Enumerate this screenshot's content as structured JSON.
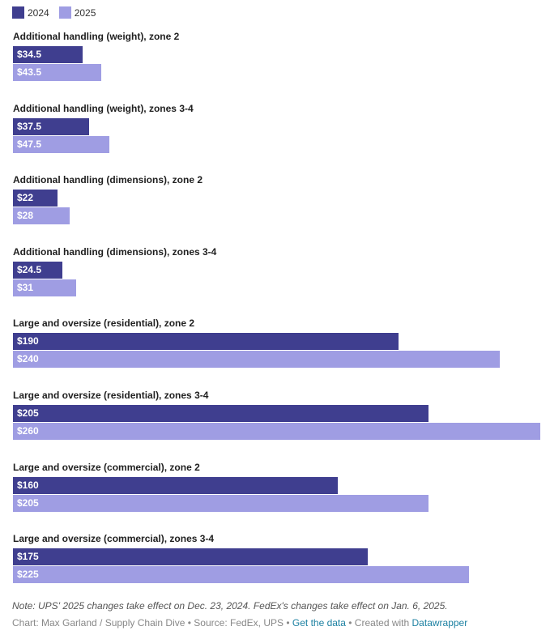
{
  "chart_data": {
    "type": "bar",
    "orientation": "horizontal",
    "legend_position": "top-left",
    "categories": [
      "Additional handling (weight), zone 2",
      "Additional handling (weight), zones 3-4",
      "Additional handling (dimensions), zone 2",
      "Additional handling (dimensions), zones 3-4",
      "Large and oversize (residential), zone 2",
      "Large and oversize (residential), zones 3-4",
      "Large and oversize (commercial), zone 2",
      "Large and oversize (commercial), zones 3-4"
    ],
    "series": [
      {
        "name": "2024",
        "color": "#3f3e8f",
        "values": [
          34.5,
          37.5,
          22,
          24.5,
          190,
          205,
          160,
          175
        ],
        "labels": [
          "$34.5",
          "$37.5",
          "$22",
          "$24.5",
          "$190",
          "$205",
          "$160",
          "$175"
        ]
      },
      {
        "name": "2025",
        "color": "#9f9de3",
        "values": [
          43.5,
          47.5,
          28,
          31,
          240,
          260,
          205,
          225
        ],
        "labels": [
          "$43.5",
          "$47.5",
          "$28",
          "$31",
          "$240",
          "$260",
          "$205",
          "$225"
        ]
      }
    ],
    "xlim": [
      0,
      260
    ],
    "grid": false
  },
  "notes": "Note: UPS' 2025 changes take effect on Dec. 23, 2024. FedEx's changes take effect on Jan. 6, 2025.",
  "footer": {
    "credit": "Chart: Max Garland / Supply Chain Dive • Source: FedEx, UPS • ",
    "get_data": "Get the data",
    "separator": " • Created with ",
    "datawrapper": "Datawrapper"
  }
}
